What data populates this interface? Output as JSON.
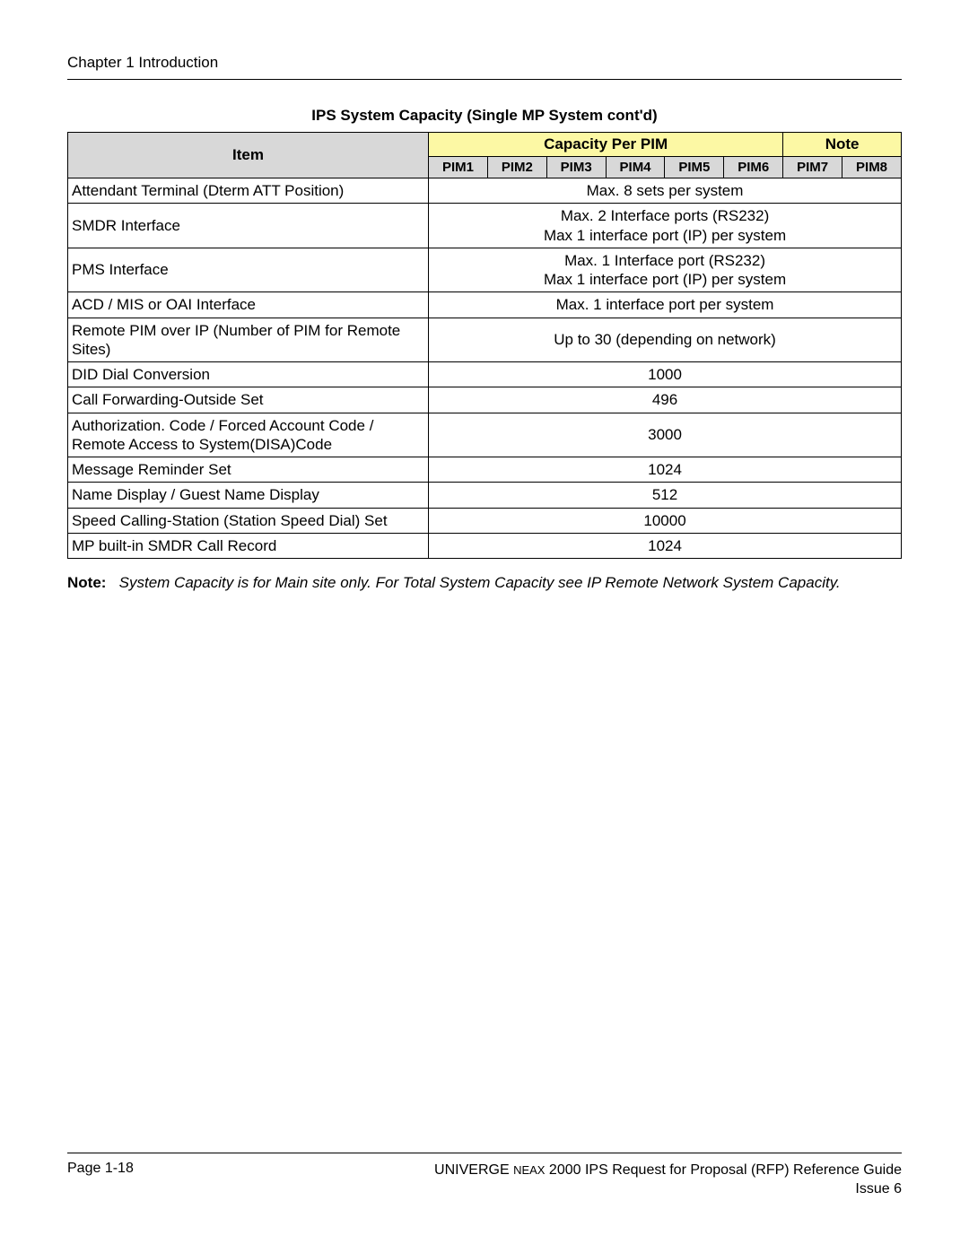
{
  "header": {
    "chapter": "Chapter 1   Introduction"
  },
  "table": {
    "title": "IPS System Capacity (Single MP System cont'd)",
    "headers": {
      "item": "Item",
      "capacity_group": "Capacity Per PIM",
      "note": "Note",
      "pim_subs": [
        "PIM1",
        "PIM2",
        "PIM3",
        "PIM4",
        "PIM5",
        "PIM6",
        "PIM7",
        "PIM8"
      ]
    },
    "colors": {
      "yellow_header_bg": "#fcf8a4",
      "grey_header_bg": "#d8d8d8",
      "border": "#000000"
    },
    "rows": [
      {
        "item": "Attendant Terminal (Dterm ATT Position)",
        "value": "Max. 8 sets per system"
      },
      {
        "item": "SMDR Interface",
        "value": "Max. 2 Interface ports (RS232)\nMax 1 interface port (IP) per system"
      },
      {
        "item": "PMS Interface",
        "value": "Max. 1 Interface port (RS232)\nMax 1 interface port (IP) per system"
      },
      {
        "item": "ACD / MIS or OAI Interface",
        "value": "Max. 1 interface port per system"
      },
      {
        "item": "Remote PIM over IP (Number of PIM for Remote Sites)",
        "value": "Up to 30 (depending on network)"
      },
      {
        "item": "DID Dial Conversion",
        "value": "1000"
      },
      {
        "item": "Call Forwarding-Outside Set",
        "value": "496"
      },
      {
        "item": "Authorization. Code / Forced Account Code / Remote Access to System(DISA)Code",
        "value": "3000"
      },
      {
        "item": "Message Reminder Set",
        "value": "1024"
      },
      {
        "item": "Name Display / Guest Name Display",
        "value": "512"
      },
      {
        "item": "Speed Calling-Station (Station Speed Dial) Set",
        "value": "10000"
      },
      {
        "item": "MP built-in SMDR Call Record",
        "value": "1024"
      }
    ]
  },
  "note": {
    "label": "Note:",
    "body": "System Capacity is for Main site only.  For Total System Capacity see IP Remote Network System Capacity."
  },
  "footer": {
    "page": "Page 1-18",
    "doc_prefix": "UNIVERGE ",
    "doc_small": "NEAX",
    "doc_suffix": " 2000 IPS Request for Proposal (RFP) Reference Guide",
    "issue": "Issue 6"
  }
}
